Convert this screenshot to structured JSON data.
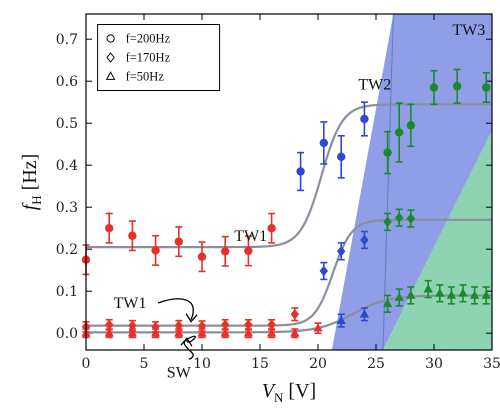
{
  "chart_data": {
    "type": "scatter",
    "xlabel_main": "V",
    "xlabel_sub": "N",
    "xlabel_unit": " [V]",
    "ylabel_main": "f",
    "ylabel_sub": "H",
    "ylabel_unit": " [Hz]",
    "xlim": [
      0,
      35
    ],
    "ylim": [
      -0.04,
      0.76
    ],
    "xticks": [
      0,
      5,
      10,
      15,
      20,
      25,
      30,
      35
    ],
    "yticks": [
      0.0,
      0.1,
      0.2,
      0.3,
      0.4,
      0.5,
      0.6,
      0.7
    ],
    "regions": [
      {
        "label": "TW1",
        "color": "#ffffff"
      },
      {
        "label": "TW2",
        "color": "#8f9ee6",
        "x_top": [
          26.5,
          40
        ],
        "x_bottom": [
          21.2,
          25.6
        ]
      },
      {
        "label": "TW3",
        "color": "#8fd4b2",
        "x_top": [
          40,
          35
        ],
        "x_bottom": [
          25.6,
          35
        ]
      }
    ],
    "annotations": [
      {
        "text": "TW1",
        "x": 14.2,
        "y": 0.22
      },
      {
        "text": "TW2",
        "x": 24.9,
        "y": 0.58
      },
      {
        "text": "TW3",
        "x": 33.0,
        "y": 0.71
      },
      {
        "text": "TW1",
        "x": 3.8,
        "y": 0.06
      },
      {
        "text": "SW",
        "x": 8.0,
        "y": -0.105
      }
    ],
    "legend_position": "top-left",
    "series": [
      {
        "name": "f=200Hz",
        "marker": "circle",
        "color": "#e63128",
        "points": [
          {
            "x": 0.0,
            "y": 0.175,
            "e": 0.035
          },
          {
            "x": 2.0,
            "y": 0.25,
            "e": 0.035
          },
          {
            "x": 4.0,
            "y": 0.232,
            "e": 0.035
          },
          {
            "x": 6.0,
            "y": 0.197,
            "e": 0.035
          },
          {
            "x": 8.0,
            "y": 0.218,
            "e": 0.035
          },
          {
            "x": 10.0,
            "y": 0.182,
            "e": 0.035
          },
          {
            "x": 12.0,
            "y": 0.195,
            "e": 0.035
          },
          {
            "x": 14.0,
            "y": 0.196,
            "e": 0.035
          },
          {
            "x": 16.0,
            "y": 0.25,
            "e": 0.035
          }
        ]
      },
      {
        "name": "f=170Hz",
        "marker": "diamond",
        "color": "#e63128",
        "points": [
          {
            "x": 0.0,
            "y": 0.015,
            "e": 0.012
          },
          {
            "x": 2.0,
            "y": 0.02,
            "e": 0.012
          },
          {
            "x": 4.0,
            "y": 0.018,
            "e": 0.012
          },
          {
            "x": 6.0,
            "y": 0.015,
            "e": 0.012
          },
          {
            "x": 8.0,
            "y": 0.018,
            "e": 0.012
          },
          {
            "x": 10.0,
            "y": 0.017,
            "e": 0.012
          },
          {
            "x": 12.0,
            "y": 0.02,
            "e": 0.012
          },
          {
            "x": 14.0,
            "y": 0.02,
            "e": 0.012
          },
          {
            "x": 16.0,
            "y": 0.02,
            "e": 0.012
          },
          {
            "x": 18.0,
            "y": 0.045,
            "e": 0.015
          }
        ]
      },
      {
        "name": "f=50Hz",
        "marker": "triangle",
        "color": "#e63128",
        "points": [
          {
            "x": 0.0,
            "y": 0.0,
            "e": 0.01
          },
          {
            "x": 2.0,
            "y": 0.0,
            "e": 0.01
          },
          {
            "x": 4.0,
            "y": 0.0,
            "e": 0.01
          },
          {
            "x": 6.0,
            "y": 0.0,
            "e": 0.01
          },
          {
            "x": 8.0,
            "y": 0.0,
            "e": 0.01
          },
          {
            "x": 10.0,
            "y": 0.0,
            "e": 0.01
          },
          {
            "x": 12.0,
            "y": 0.0,
            "e": 0.01
          },
          {
            "x": 14.0,
            "y": 0.0,
            "e": 0.01
          },
          {
            "x": 16.0,
            "y": 0.0,
            "e": 0.01
          },
          {
            "x": 18.0,
            "y": 0.0,
            "e": 0.01
          },
          {
            "x": 20.0,
            "y": 0.012,
            "e": 0.012
          }
        ]
      },
      {
        "name": "f=200Hz",
        "marker": "circle",
        "color": "#2a49d8",
        "points": [
          {
            "x": 18.5,
            "y": 0.385,
            "e": 0.045
          },
          {
            "x": 20.5,
            "y": 0.453,
            "e": 0.05
          },
          {
            "x": 22.0,
            "y": 0.42,
            "e": 0.05
          },
          {
            "x": 24.0,
            "y": 0.51,
            "e": 0.04
          }
        ]
      },
      {
        "name": "f=170Hz",
        "marker": "diamond",
        "color": "#2a49d8",
        "points": [
          {
            "x": 20.5,
            "y": 0.148,
            "e": 0.02
          },
          {
            "x": 22.0,
            "y": 0.195,
            "e": 0.02
          },
          {
            "x": 24.0,
            "y": 0.222,
            "e": 0.02
          }
        ]
      },
      {
        "name": "f=50Hz",
        "marker": "triangle",
        "color": "#2a49d8",
        "points": [
          {
            "x": 22.0,
            "y": 0.03,
            "e": 0.015
          },
          {
            "x": 24.0,
            "y": 0.045,
            "e": 0.015
          }
        ]
      },
      {
        "name": "f=200Hz",
        "marker": "circle",
        "color": "#1b8a2c",
        "points": [
          {
            "x": 26.0,
            "y": 0.43,
            "e": 0.05
          },
          {
            "x": 27.0,
            "y": 0.478,
            "e": 0.07
          },
          {
            "x": 28.0,
            "y": 0.495,
            "e": 0.05
          },
          {
            "x": 30.0,
            "y": 0.585,
            "e": 0.04
          },
          {
            "x": 32.0,
            "y": 0.588,
            "e": 0.04
          },
          {
            "x": 34.5,
            "y": 0.585,
            "e": 0.035
          }
        ]
      },
      {
        "name": "f=170Hz",
        "marker": "diamond",
        "color": "#1b8a2c",
        "points": [
          {
            "x": 26.0,
            "y": 0.265,
            "e": 0.02
          },
          {
            "x": 27.0,
            "y": 0.275,
            "e": 0.02
          },
          {
            "x": 28.0,
            "y": 0.273,
            "e": 0.02
          }
        ]
      },
      {
        "name": "f=50Hz",
        "marker": "triangle",
        "color": "#1b8a2c",
        "points": [
          {
            "x": 26.0,
            "y": 0.07,
            "e": 0.02
          },
          {
            "x": 27.0,
            "y": 0.085,
            "e": 0.02
          },
          {
            "x": 28.0,
            "y": 0.09,
            "e": 0.02
          },
          {
            "x": 29.5,
            "y": 0.105,
            "e": 0.02
          },
          {
            "x": 30.5,
            "y": 0.095,
            "e": 0.02
          },
          {
            "x": 31.5,
            "y": 0.09,
            "e": 0.02
          },
          {
            "x": 32.5,
            "y": 0.095,
            "e": 0.02
          },
          {
            "x": 33.5,
            "y": 0.09,
            "e": 0.02
          },
          {
            "x": 34.5,
            "y": 0.09,
            "e": 0.02
          }
        ]
      }
    ],
    "fit_curves": [
      {
        "name": "200Hz",
        "low": 0.205,
        "high": 0.545,
        "x0": 20.3,
        "w": 0.9
      },
      {
        "name": "170Hz",
        "low": 0.018,
        "high": 0.27,
        "x0": 21.3,
        "w": 0.8
      },
      {
        "name": "50Hz",
        "low": 0.002,
        "high": 0.09,
        "x0": 23.0,
        "w": 1.5
      }
    ],
    "fit_color": "#8a8fa0",
    "legend": [
      {
        "marker": "circle",
        "label": "f=200Hz"
      },
      {
        "marker": "diamond",
        "label": "f=170Hz"
      },
      {
        "marker": "triangle",
        "label": "f=50Hz"
      }
    ]
  }
}
